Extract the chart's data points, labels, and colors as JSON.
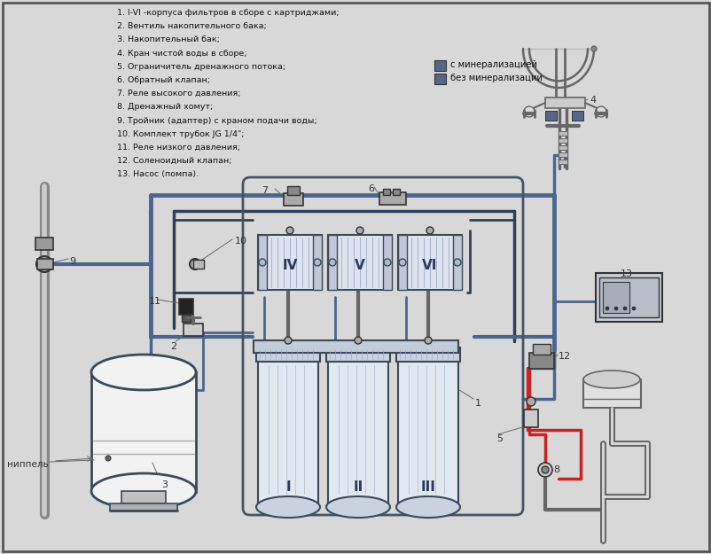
{
  "bg_color": "#d8d8d8",
  "border_color": "#444444",
  "legend_items": [
    "1. I-VI -корпуса фильтров в сборе с картриджами;",
    "2. Вентиль накопительного бака;",
    "3. Накопительный бак;",
    "4. Кран чистой воды в сборе;",
    "5. Ограничитель дренажного потока;",
    "6. Обратный клапан;",
    "7. Реле высокого давления;",
    "8. Дренажный хомут;",
    "9. Тройник (адаптер) с краном подачи воды;",
    "10. Комплект трубок JG 1/4\";",
    "11. Реле низкого давления;",
    "12. Соленоидный клапан;",
    "13. Насос (помпа)."
  ],
  "legend_a": "с минерализацией",
  "legend_b": "без минерализации",
  "nipple_label": "ниппель",
  "filter_labels_bottom": [
    "I",
    "II",
    "III"
  ],
  "filter_labels_top": [
    "IV",
    "V",
    "VI"
  ],
  "pipe_blue": "#4a6590",
  "pipe_dark": "#2f3f5a",
  "pipe_red": "#cc2222",
  "color_gray": "#666666",
  "color_dark": "#333333",
  "color_light": "#e8e8e8",
  "figsize": [
    8.03,
    6.25
  ],
  "dpi": 100
}
